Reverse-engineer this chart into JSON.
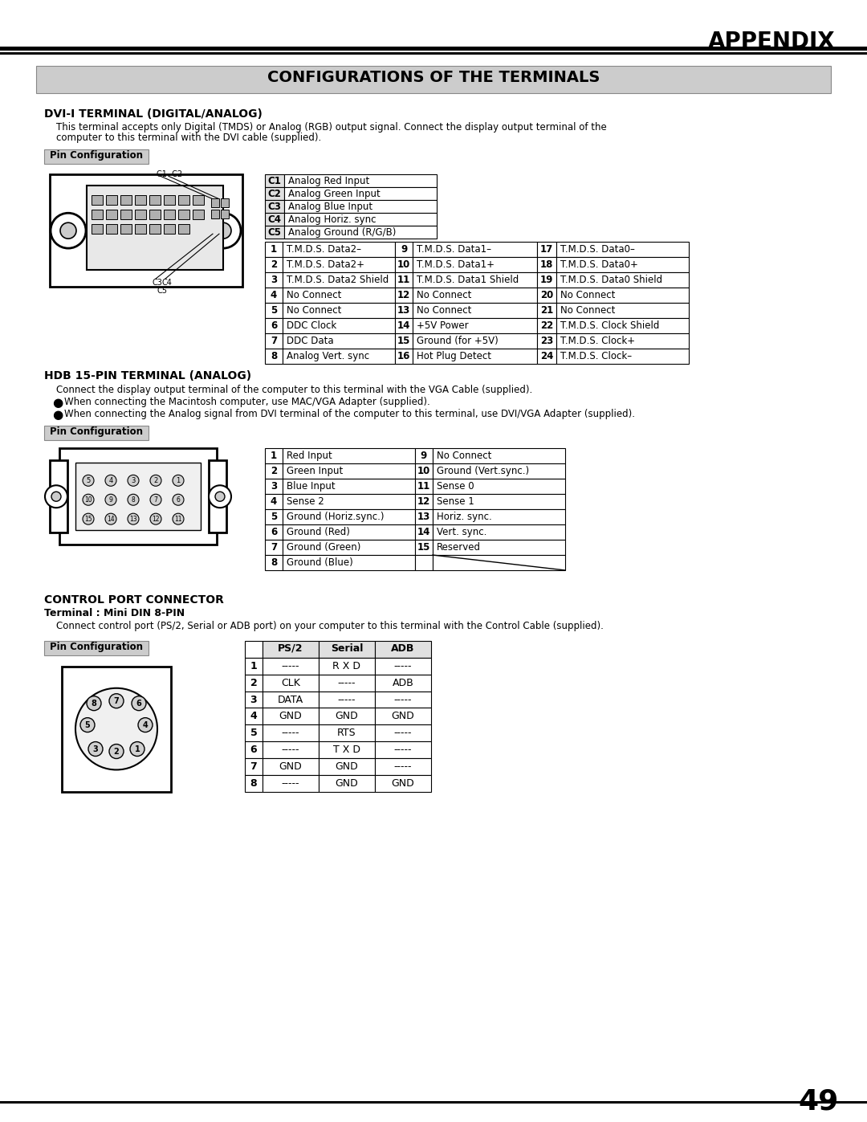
{
  "title_appendix": "APPENDIX",
  "section_title": "CONFIGURATIONS OF THE TERMINALS",
  "page_number": "49",
  "bg_color": "#ffffff",
  "dvi_title": "DVI-I TERMINAL (DIGITAL/ANALOG)",
  "dvi_desc1": "This terminal accepts only Digital (TMDS) or Analog (RGB) output signal. Connect the display output terminal of the",
  "dvi_desc2": "computer to this terminal with the DVI cable (supplied).",
  "dvi_c_pins": [
    [
      "C1",
      "Analog Red Input"
    ],
    [
      "C2",
      "Analog Green Input"
    ],
    [
      "C3",
      "Analog Blue Input"
    ],
    [
      "C4",
      "Analog Horiz. sync"
    ],
    [
      "C5",
      "Analog Ground (R/G/B)"
    ]
  ],
  "dvi_pins": [
    [
      1,
      "T.M.D.S. Data2–",
      9,
      "T.M.D.S. Data1–",
      17,
      "T.M.D.S. Data0–"
    ],
    [
      2,
      "T.M.D.S. Data2+",
      10,
      "T.M.D.S. Data1+",
      18,
      "T.M.D.S. Data0+"
    ],
    [
      3,
      "T.M.D.S. Data2 Shield",
      11,
      "T.M.D.S. Data1 Shield",
      19,
      "T.M.D.S. Data0 Shield"
    ],
    [
      4,
      "No Connect",
      12,
      "No Connect",
      20,
      "No Connect"
    ],
    [
      5,
      "No Connect",
      13,
      "No Connect",
      21,
      "No Connect"
    ],
    [
      6,
      "DDC Clock",
      14,
      "+5V Power",
      22,
      "T.M.D.S. Clock Shield"
    ],
    [
      7,
      "DDC Data",
      15,
      "Ground (for +5V)",
      23,
      "T.M.D.S. Clock+"
    ],
    [
      8,
      "Analog Vert. sync",
      16,
      "Hot Plug Detect",
      24,
      "T.M.D.S. Clock–"
    ]
  ],
  "hdb_title": "HDB 15-PIN TERMINAL (ANALOG)",
  "hdb_desc1": "Connect the display output terminal of the computer to this terminal with the VGA Cable (supplied).",
  "hdb_desc2": "When connecting the Macintosh computer, use MAC/VGA Adapter (supplied).",
  "hdb_desc3": "When connecting the Analog signal from DVI terminal of the computer to this terminal, use DVI/VGA Adapter (supplied).",
  "hdb_pins": [
    [
      1,
      "Red Input",
      9,
      "No Connect"
    ],
    [
      2,
      "Green Input",
      10,
      "Ground (Vert.sync.)"
    ],
    [
      3,
      "Blue Input",
      11,
      "Sense 0"
    ],
    [
      4,
      "Sense 2",
      12,
      "Sense 1"
    ],
    [
      5,
      "Ground (Horiz.sync.)",
      13,
      "Horiz. sync."
    ],
    [
      6,
      "Ground (Red)",
      14,
      "Vert. sync."
    ],
    [
      7,
      "Ground (Green)",
      15,
      "Reserved"
    ],
    [
      8,
      "Ground (Blue)",
      null,
      null
    ]
  ],
  "ctrl_title": "CONTROL PORT CONNECTOR",
  "ctrl_subtitle": "Terminal : Mini DIN 8-PIN",
  "ctrl_desc": "Connect control port (PS/2, Serial or ADB port) on your computer to this terminal with the Control Cable (supplied).",
  "ctrl_pins": [
    [
      1,
      "-----",
      "R X D",
      "-----"
    ],
    [
      2,
      "CLK",
      "-----",
      "ADB"
    ],
    [
      3,
      "DATA",
      "-----",
      "-----"
    ],
    [
      4,
      "GND",
      "GND",
      "GND"
    ],
    [
      5,
      "-----",
      "RTS",
      "-----"
    ],
    [
      6,
      "-----",
      "T X D",
      "-----"
    ],
    [
      7,
      "GND",
      "GND",
      "-----"
    ],
    [
      8,
      "-----",
      "GND",
      "GND"
    ]
  ]
}
